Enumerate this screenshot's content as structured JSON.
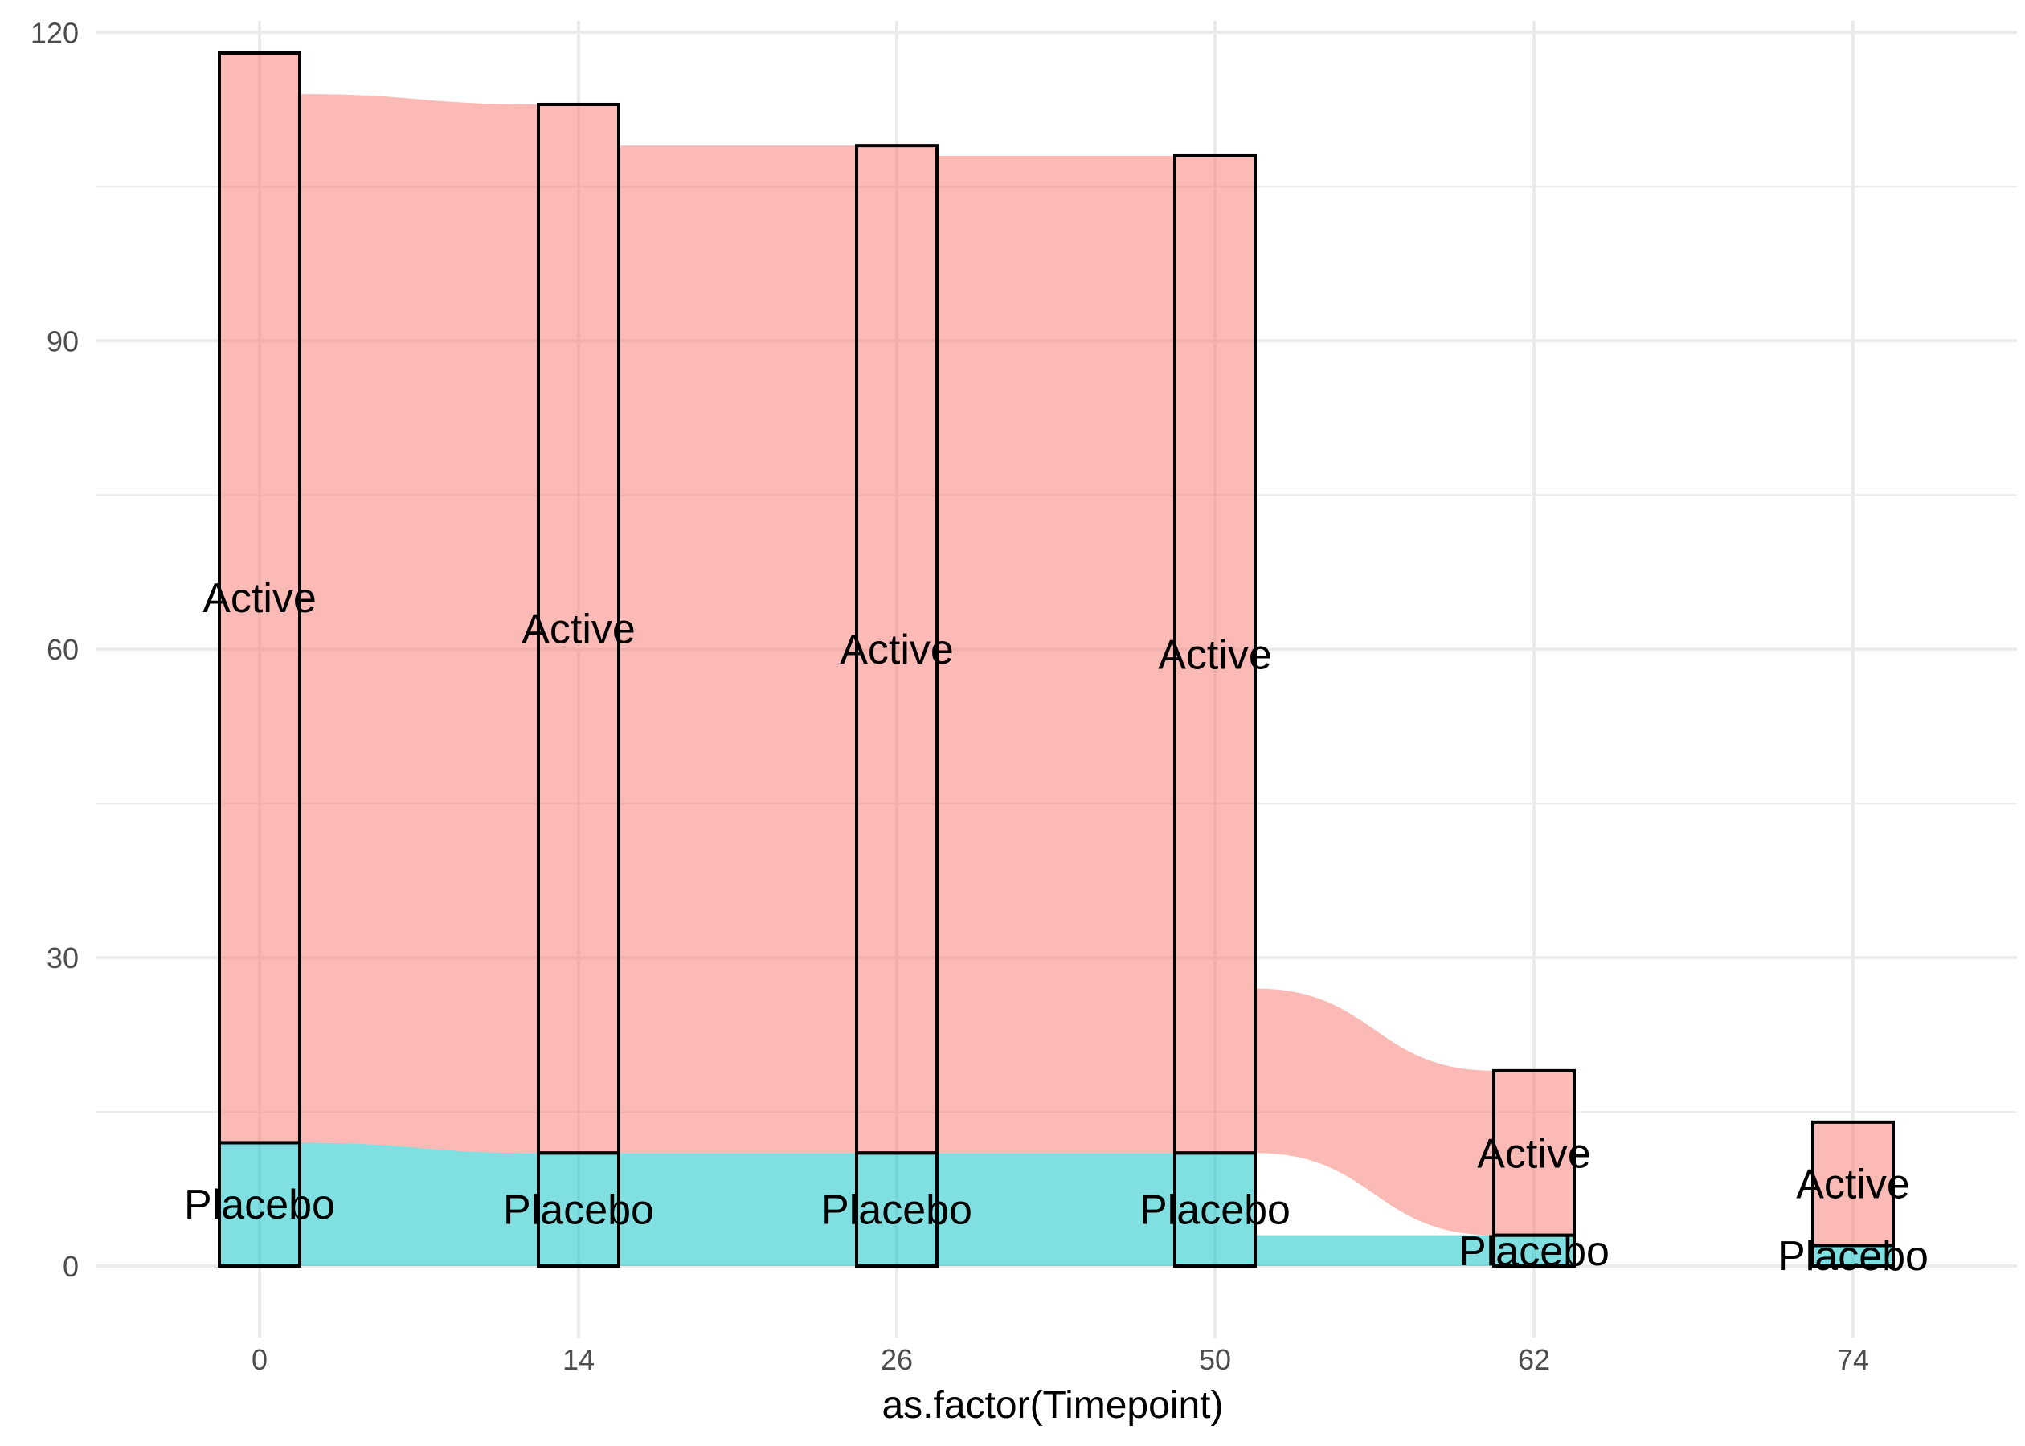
{
  "chart_data": {
    "type": "alluvial",
    "xlabel": "as.factor(Timepoint)",
    "ylabel": "",
    "categories": [
      "0",
      "14",
      "26",
      "50",
      "62",
      "74"
    ],
    "ylim": [
      -5,
      123
    ],
    "yticks": [
      0,
      30,
      60,
      90,
      120
    ],
    "grid": true,
    "strata": [
      {
        "name": "Placebo",
        "values": [
          12,
          11,
          11,
          11,
          3,
          2
        ]
      },
      {
        "name": "Active",
        "values": [
          106,
          102,
          98,
          97,
          16,
          12
        ]
      }
    ],
    "flows": [
      {
        "from": "0",
        "to": "14",
        "stratum": "Placebo",
        "lower": [
          0,
          0
        ],
        "upper": [
          12,
          11
        ]
      },
      {
        "from": "0",
        "to": "14",
        "stratum": "Active",
        "lower": [
          12,
          11
        ],
        "upper": [
          114,
          113
        ]
      },
      {
        "from": "14",
        "to": "26",
        "stratum": "Placebo",
        "lower": [
          0,
          0
        ],
        "upper": [
          11,
          11
        ]
      },
      {
        "from": "14",
        "to": "26",
        "stratum": "Active",
        "lower": [
          11,
          11
        ],
        "upper": [
          109,
          109
        ]
      },
      {
        "from": "26",
        "to": "50",
        "stratum": "Placebo",
        "lower": [
          0,
          0
        ],
        "upper": [
          11,
          11
        ]
      },
      {
        "from": "26",
        "to": "50",
        "stratum": "Active",
        "lower": [
          11,
          11
        ],
        "upper": [
          108,
          108
        ]
      },
      {
        "from": "50",
        "to": "62",
        "stratum": "Placebo",
        "lower": [
          0,
          0
        ],
        "upper": [
          3,
          3
        ]
      },
      {
        "from": "50",
        "to": "62",
        "stratum": "Active",
        "lower": [
          11,
          3
        ],
        "upper": [
          27,
          19
        ]
      }
    ],
    "colors": {
      "Active": "#F8766D",
      "Placebo": "#00BFC4",
      "grid": "#EBEBEB",
      "box_stroke": "#000000"
    }
  }
}
